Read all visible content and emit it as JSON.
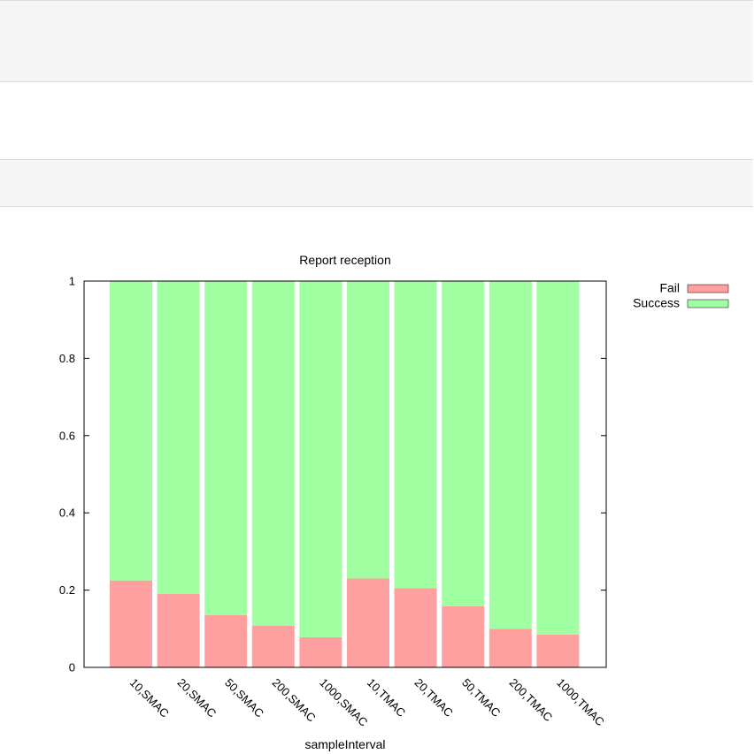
{
  "chart_data": {
    "type": "bar",
    "stacked": true,
    "title": "Report reception",
    "xlabel": "sampleInterval",
    "ylabel": "",
    "ylim": [
      0,
      1
    ],
    "yticks": [
      0,
      0.2,
      0.4,
      0.6,
      0.8,
      1
    ],
    "ytick_labels": [
      "0",
      "0.2",
      "0.4",
      "0.6",
      "0.8",
      "1"
    ],
    "categories": [
      "10,SMAC",
      "20,SMAC",
      "50,SMAC",
      "200,SMAC",
      "1000,SMAC",
      "10,TMAC",
      "20,TMAC",
      "50,TMAC",
      "200,TMAC",
      "1000,TMAC"
    ],
    "series": [
      {
        "name": "Fail",
        "color": "#ffa0a0",
        "values": [
          0.225,
          0.19,
          0.135,
          0.108,
          0.078,
          0.23,
          0.205,
          0.158,
          0.1,
          0.085
        ]
      },
      {
        "name": "Success",
        "color": "#a0ffa0",
        "values": [
          0.775,
          0.81,
          0.865,
          0.892,
          0.922,
          0.77,
          0.795,
          0.842,
          0.9,
          0.915
        ]
      }
    ],
    "legend_position": "top-right, outside plot",
    "grid": false
  }
}
